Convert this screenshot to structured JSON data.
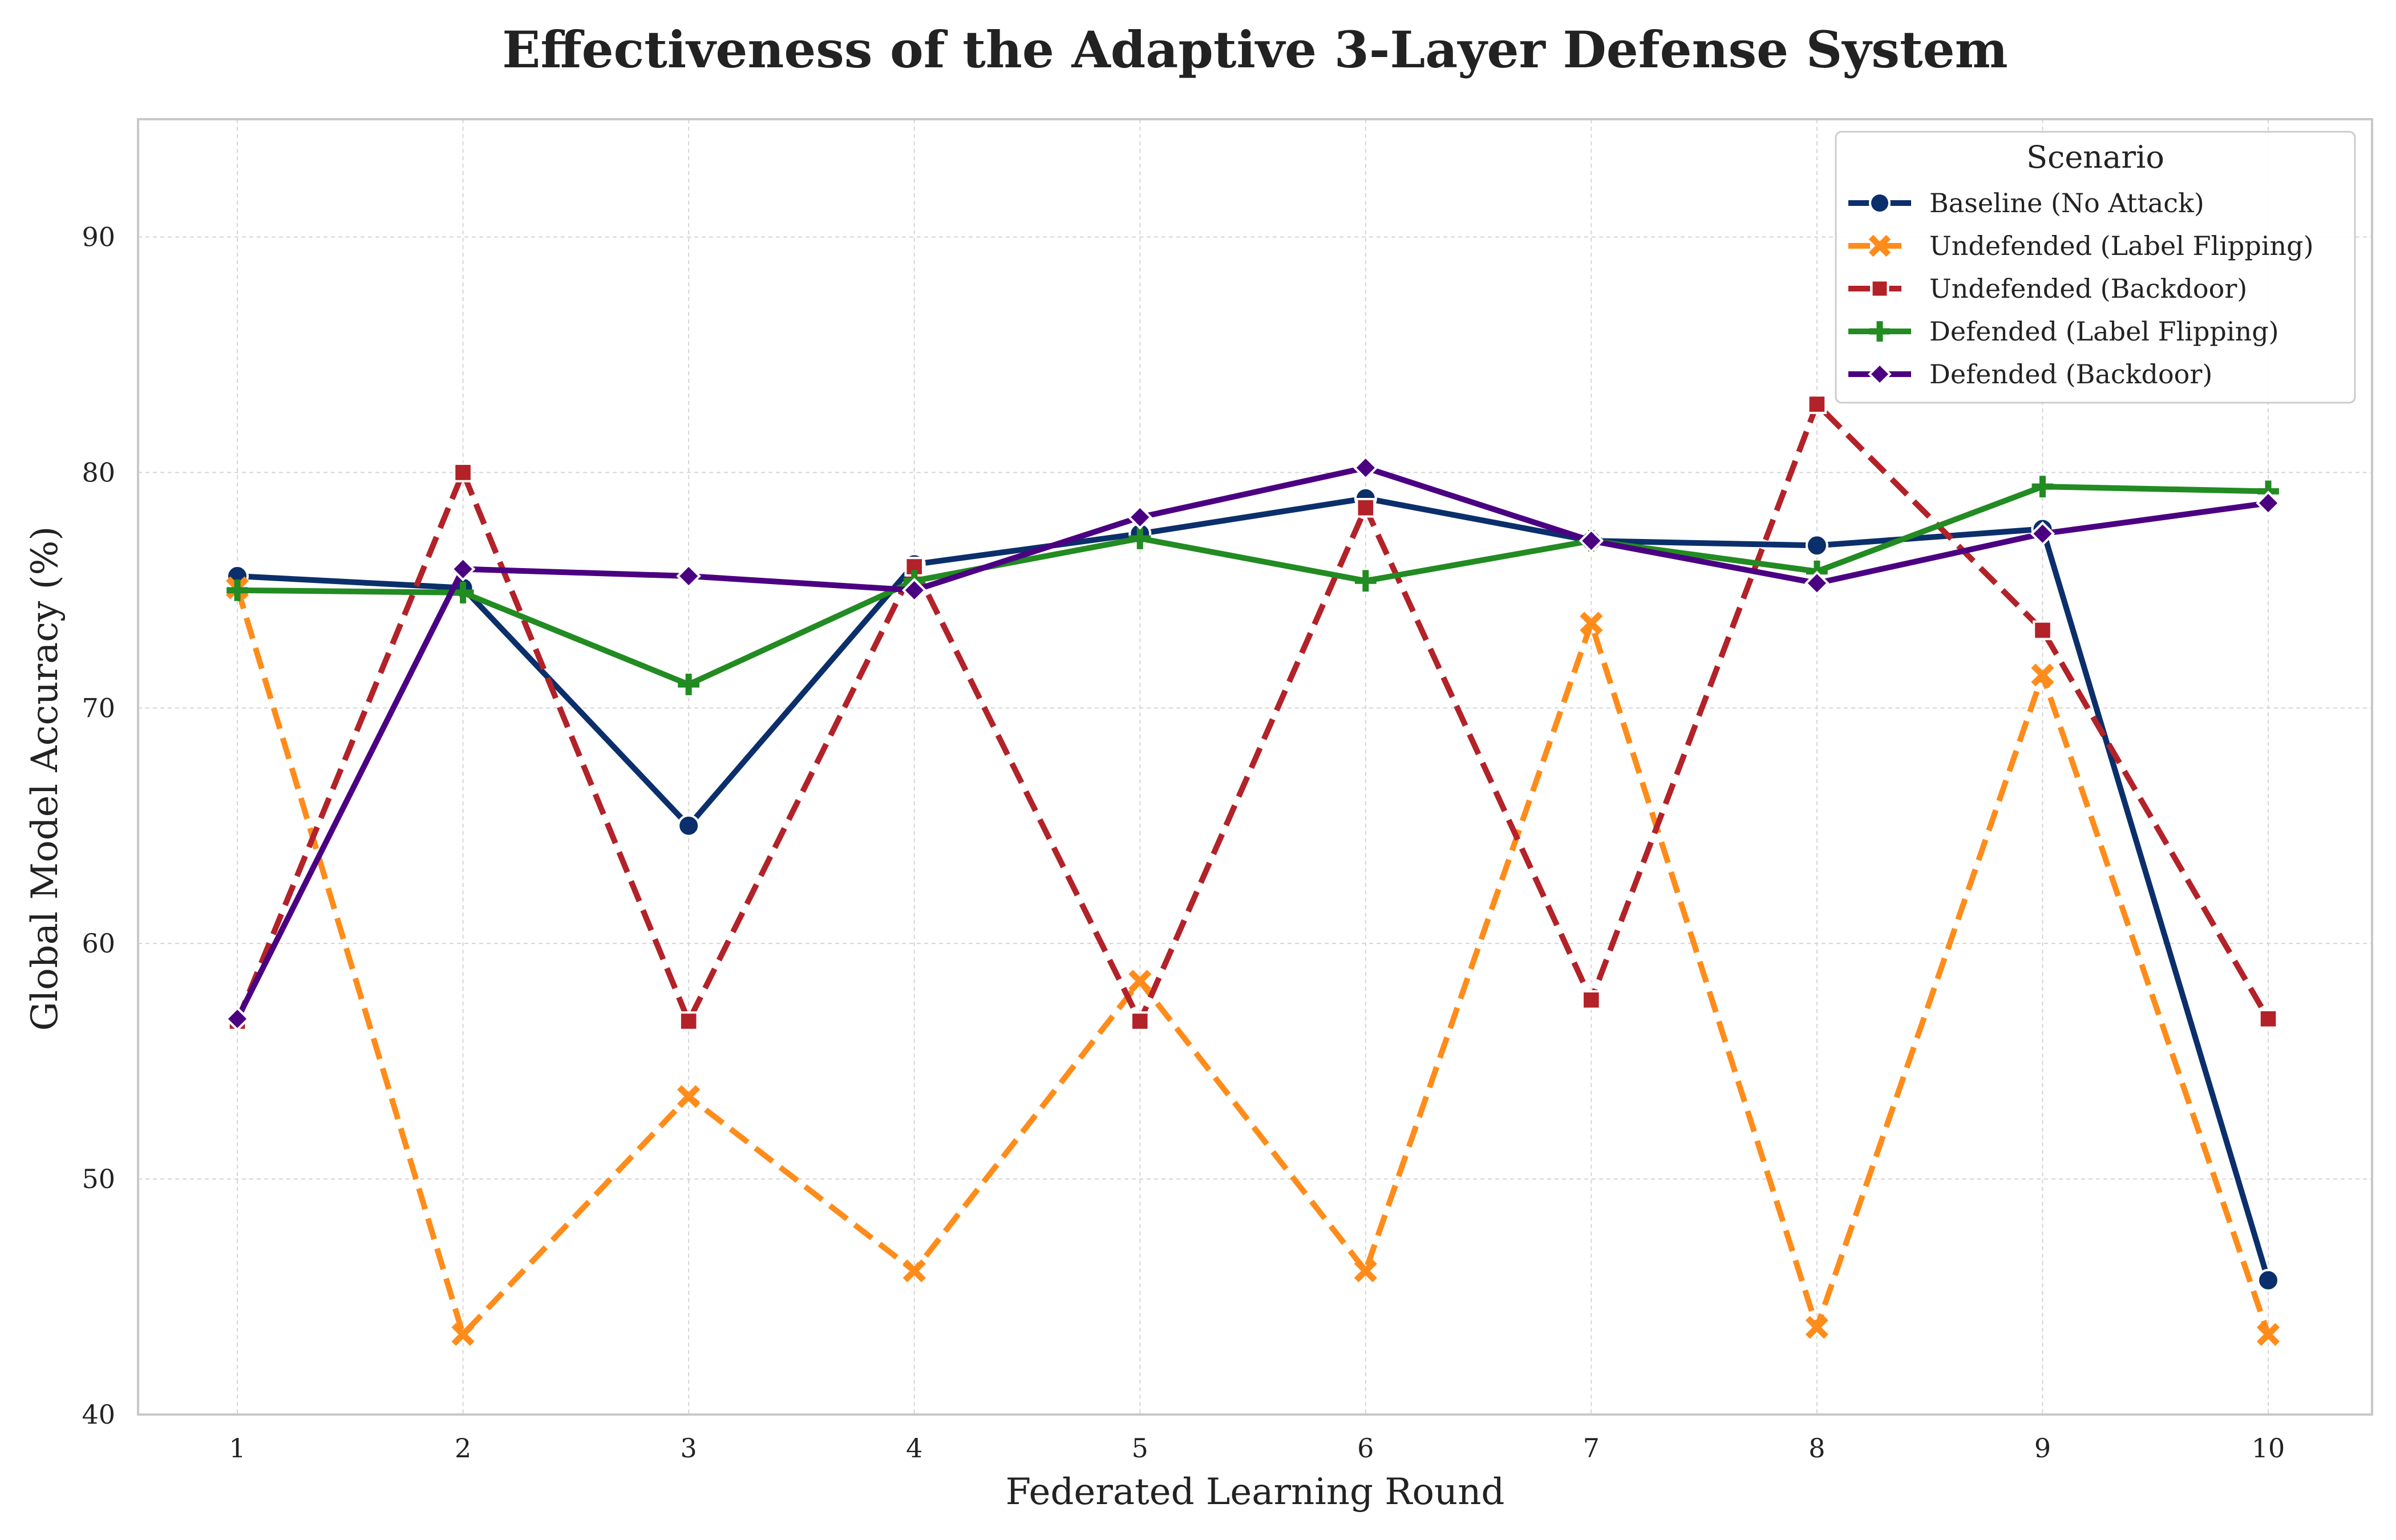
{
  "chart_data": {
    "type": "line",
    "title": "Effectiveness of the Adaptive 3-Layer Defense System",
    "xlabel": "Federated Learning Round",
    "ylabel": "Global Model Accuracy (%)",
    "x": [
      1,
      2,
      3,
      4,
      5,
      6,
      7,
      8,
      9,
      10
    ],
    "xlim": [
      0.56,
      10.46
    ],
    "ylim": [
      40,
      95
    ],
    "yticks": [
      40,
      50,
      60,
      70,
      80,
      90
    ],
    "grid": true,
    "legend_title": "Scenario",
    "legend_position": "top-right",
    "series": [
      {
        "name": "Baseline (No Attack)",
        "color": "#0b2f6b",
        "linestyle": "solid",
        "marker": "circle",
        "values": [
          75.6,
          75.1,
          65.0,
          76.1,
          77.4,
          78.9,
          77.1,
          76.9,
          77.6,
          45.7
        ]
      },
      {
        "name": "Undefended (Label Flipping)",
        "color": "#ff8c1a",
        "linestyle": "dashed",
        "marker": "x",
        "values": [
          75.1,
          43.4,
          53.5,
          46.1,
          58.4,
          46.1,
          73.6,
          43.7,
          71.4,
          43.4
        ]
      },
      {
        "name": "Undefended (Backdoor)",
        "color": "#b22228",
        "linestyle": "dashed",
        "marker": "square",
        "values": [
          56.7,
          80.0,
          56.7,
          76.0,
          56.7,
          78.5,
          57.6,
          82.9,
          73.3,
          56.8
        ]
      },
      {
        "name": "Defended (Label Flipping)",
        "color": "#228b22",
        "linestyle": "solid",
        "marker": "plus",
        "values": [
          75.0,
          74.9,
          71.0,
          75.4,
          77.2,
          75.4,
          77.1,
          75.8,
          79.4,
          79.2
        ]
      },
      {
        "name": "Defended (Backdoor)",
        "color": "#4b0082",
        "linestyle": "solid",
        "marker": "diamond",
        "values": [
          56.8,
          75.9,
          75.6,
          75.0,
          78.1,
          80.2,
          77.1,
          75.3,
          77.4,
          78.7
        ]
      }
    ]
  }
}
